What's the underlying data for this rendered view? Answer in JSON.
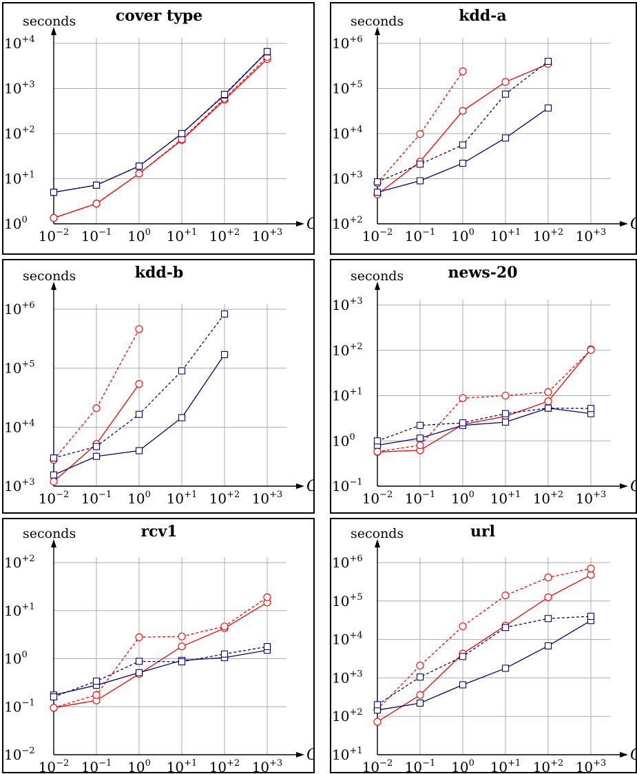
{
  "axis_labels": {
    "y": "seconds",
    "x": "C"
  },
  "styles": {
    "red": "#ff0000",
    "blue": "#00007f",
    "grid": "#aaaaaa"
  },
  "chart_data": [
    {
      "type": "line",
      "title": "cover type",
      "log_scale": {
        "x": true,
        "y": true
      },
      "grid": true,
      "xlim_exp": [
        -2,
        3
      ],
      "ylim_exp": [
        0,
        4
      ],
      "x_ticks": [
        "10^-2",
        "10^-1",
        "10^0",
        "10^+1",
        "10^+2",
        "10^+3"
      ],
      "y_ticks": [
        "10^0",
        "10^+1",
        "10^+2",
        "10^+3",
        "10^+4"
      ],
      "series": [
        {
          "color": "red",
          "dash": false,
          "marker": "circle",
          "x": [
            0.01,
            0.1,
            1,
            10,
            100,
            1000
          ],
          "y": [
            1.35,
            2.8,
            13,
            72,
            560,
            4500
          ]
        },
        {
          "color": "red",
          "dash": true,
          "marker": "circle",
          "x": [
            0.01,
            0.1,
            1,
            10,
            100,
            1000
          ],
          "y": [
            1.35,
            2.8,
            13,
            75,
            600,
            5000
          ]
        },
        {
          "color": "blue",
          "dash": false,
          "marker": "square",
          "x": [
            0.01,
            0.1,
            1,
            10,
            100,
            1000
          ],
          "y": [
            5,
            7.2,
            19,
            100,
            720,
            6500
          ]
        },
        {
          "color": "blue",
          "dash": true,
          "marker": "square",
          "x": [
            0.01,
            0.1,
            1,
            10,
            100,
            1000
          ],
          "y": [
            5,
            7.2,
            19,
            100,
            740,
            6600
          ]
        }
      ]
    },
    {
      "type": "line",
      "title": "kdd-a",
      "log_scale": {
        "x": true,
        "y": true
      },
      "grid": true,
      "xlim_exp": [
        -2,
        3
      ],
      "ylim_exp": [
        2,
        6
      ],
      "x_ticks": [
        "10^-2",
        "10^-1",
        "10^0",
        "10^+1",
        "10^+2",
        "10^+3"
      ],
      "y_ticks": [
        "10^+2",
        "10^+3",
        "10^+4",
        "10^+5",
        "10^+6"
      ],
      "series": [
        {
          "color": "red",
          "dash": false,
          "marker": "circle",
          "x": [
            0.01,
            0.1,
            1,
            10,
            100
          ],
          "y": [
            450,
            2400,
            32000,
            140000,
            350000
          ]
        },
        {
          "color": "red",
          "dash": true,
          "marker": "circle",
          "x": [
            0.01,
            0.1,
            1
          ],
          "y": [
            800,
            9800,
            240000
          ]
        },
        {
          "color": "blue",
          "dash": false,
          "marker": "square",
          "x": [
            0.01,
            0.1,
            1,
            10,
            100
          ],
          "y": [
            500,
            900,
            2200,
            8000,
            37000
          ]
        },
        {
          "color": "blue",
          "dash": true,
          "marker": "square",
          "x": [
            0.01,
            0.1,
            1,
            10,
            100
          ],
          "y": [
            850,
            2100,
            5600,
            75000,
            400000
          ]
        }
      ]
    },
    {
      "type": "line",
      "title": "kdd-b",
      "log_scale": {
        "x": true,
        "y": true
      },
      "grid": true,
      "xlim_exp": [
        -2,
        3
      ],
      "ylim_exp": [
        3,
        6
      ],
      "x_ticks": [
        "10^-2",
        "10^-1",
        "10^0",
        "10^+1",
        "10^+2",
        "10^+3"
      ],
      "y_ticks": [
        "10^+3",
        "10^+4",
        "10^+5",
        "10^+6"
      ],
      "series": [
        {
          "color": "red",
          "dash": false,
          "marker": "circle",
          "x": [
            0.01,
            0.1,
            1
          ],
          "y": [
            1200,
            5200,
            54000
          ]
        },
        {
          "color": "red",
          "dash": true,
          "marker": "circle",
          "x": [
            0.01,
            0.1,
            1
          ],
          "y": [
            2800,
            21000,
            460000
          ]
        },
        {
          "color": "blue",
          "dash": false,
          "marker": "square",
          "x": [
            0.01,
            0.1,
            1,
            10,
            100
          ],
          "y": [
            1550,
            3200,
            4000,
            14500,
            170000
          ]
        },
        {
          "color": "blue",
          "dash": true,
          "marker": "square",
          "x": [
            0.01,
            0.1,
            1,
            10,
            100
          ],
          "y": [
            3000,
            4700,
            16500,
            90000,
            830000
          ]
        }
      ]
    },
    {
      "type": "line",
      "title": "news-20",
      "log_scale": {
        "x": true,
        "y": true
      },
      "grid": true,
      "xlim_exp": [
        -2,
        3
      ],
      "ylim_exp": [
        -1,
        3
      ],
      "x_ticks": [
        "10^-2",
        "10^-1",
        "10^0",
        "10^+1",
        "10^+2",
        "10^+3"
      ],
      "y_ticks": [
        "10^-1",
        "10^0",
        "10^+1",
        "10^+2",
        "10^+3"
      ],
      "series": [
        {
          "color": "red",
          "dash": false,
          "marker": "circle",
          "x": [
            0.01,
            0.1,
            1,
            10,
            100,
            1000
          ],
          "y": [
            0.57,
            0.62,
            2.3,
            3.5,
            7.5,
            105
          ]
        },
        {
          "color": "red",
          "dash": true,
          "marker": "circle",
          "x": [
            0.01,
            0.1,
            1,
            10,
            100,
            1000
          ],
          "y": [
            0.58,
            0.8,
            8.8,
            10,
            12,
            102
          ]
        },
        {
          "color": "blue",
          "dash": false,
          "marker": "square",
          "x": [
            0.01,
            0.1,
            1,
            10,
            100,
            1000
          ],
          "y": [
            0.8,
            1.15,
            2.2,
            2.6,
            5.3,
            4
          ]
        },
        {
          "color": "blue",
          "dash": true,
          "marker": "square",
          "x": [
            0.01,
            0.1,
            1,
            10,
            100,
            1000
          ],
          "y": [
            1,
            2.2,
            2.5,
            4,
            5.3,
            5.2
          ]
        }
      ]
    },
    {
      "type": "line",
      "title": "rcv1",
      "log_scale": {
        "x": true,
        "y": true
      },
      "grid": true,
      "xlim_exp": [
        -2,
        3
      ],
      "ylim_exp": [
        -2,
        2
      ],
      "x_ticks": [
        "10^-2",
        "10^-1",
        "10^0",
        "10^+1",
        "10^+2",
        "10^+3"
      ],
      "y_ticks": [
        "10^-2",
        "10^-1",
        "10^0",
        "10^+1",
        "10^+2"
      ],
      "series": [
        {
          "color": "red",
          "dash": false,
          "marker": "circle",
          "x": [
            0.01,
            0.1,
            1,
            10,
            100,
            1000
          ],
          "y": [
            0.095,
            0.135,
            0.48,
            1.8,
            4.3,
            14.8
          ]
        },
        {
          "color": "red",
          "dash": true,
          "marker": "circle",
          "x": [
            0.01,
            0.1,
            1,
            10,
            100,
            1000
          ],
          "y": [
            0.095,
            0.175,
            2.8,
            2.9,
            4.7,
            19
          ]
        },
        {
          "color": "blue",
          "dash": false,
          "marker": "square",
          "x": [
            0.01,
            0.1,
            1,
            10,
            100,
            1000
          ],
          "y": [
            0.175,
            0.28,
            0.51,
            0.92,
            1.05,
            1.5
          ]
        },
        {
          "color": "blue",
          "dash": true,
          "marker": "square",
          "x": [
            0.01,
            0.1,
            1,
            10,
            100,
            1000
          ],
          "y": [
            0.16,
            0.34,
            0.88,
            0.86,
            1.25,
            1.78
          ]
        }
      ]
    },
    {
      "type": "line",
      "title": "url",
      "log_scale": {
        "x": true,
        "y": true
      },
      "grid": true,
      "xlim_exp": [
        -2,
        3
      ],
      "ylim_exp": [
        1,
        6
      ],
      "x_ticks": [
        "10^-2",
        "10^-1",
        "10^0",
        "10^+1",
        "10^+2",
        "10^+3"
      ],
      "y_ticks": [
        "10^+1",
        "10^+2",
        "10^+3",
        "10^+4",
        "10^+5",
        "10^+6"
      ],
      "series": [
        {
          "color": "red",
          "dash": false,
          "marker": "circle",
          "x": [
            0.01,
            0.1,
            1,
            10,
            100,
            1000
          ],
          "y": [
            72,
            360,
            4300,
            23000,
            125000,
            480000
          ]
        },
        {
          "color": "red",
          "dash": true,
          "marker": "circle",
          "x": [
            0.01,
            0.1,
            1,
            10,
            100,
            1000
          ],
          "y": [
            150,
            2100,
            22000,
            140000,
            410000,
            700000
          ]
        },
        {
          "color": "blue",
          "dash": false,
          "marker": "square",
          "x": [
            0.01,
            0.1,
            1,
            10,
            100,
            1000
          ],
          "y": [
            145,
            220,
            660,
            1780,
            6800,
            31000
          ]
        },
        {
          "color": "blue",
          "dash": true,
          "marker": "square",
          "x": [
            0.01,
            0.1,
            1,
            10,
            100,
            1000
          ],
          "y": [
            200,
            1050,
            3600,
            20500,
            35000,
            40000
          ]
        }
      ]
    }
  ]
}
